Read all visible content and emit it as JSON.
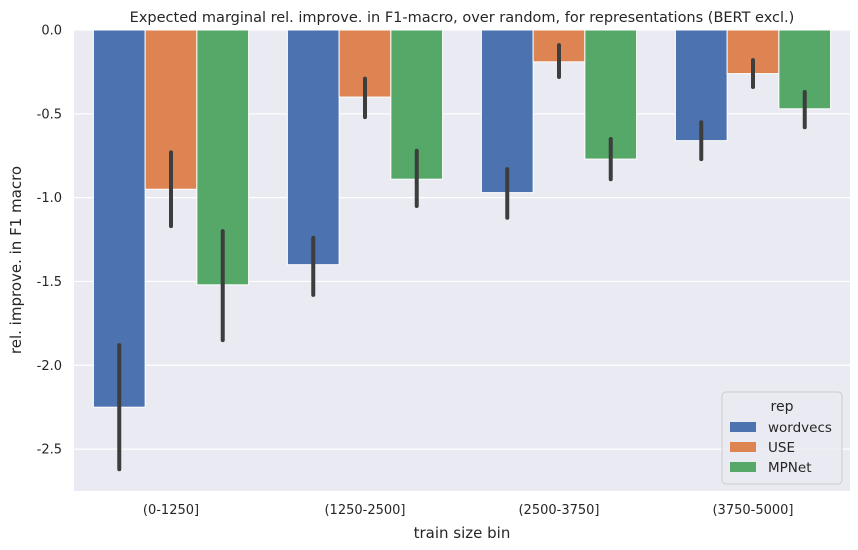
{
  "chart_data": {
    "type": "bar",
    "title": "Expected marginal rel. improve. in F1-macro, over random, for representations (BERT excl.)",
    "xlabel": "train size bin",
    "ylabel": "rel. improve. in F1 macro",
    "categories": [
      "(0-1250]",
      "(1250-2500]",
      "(2500-3750]",
      "(3750-5000]"
    ],
    "ylim": [
      -2.75,
      0.0
    ],
    "yticks": [
      0.0,
      -0.5,
      -1.0,
      -1.5,
      -2.0,
      -2.5
    ],
    "ytick_labels": [
      "0.0",
      "-0.5",
      "-1.0",
      "-1.5",
      "-2.0",
      "-2.5"
    ],
    "grid": true,
    "legend": {
      "title": "rep",
      "placement": "bottom-right"
    },
    "series": [
      {
        "name": "wordvecs",
        "color": "#4c72b0",
        "values": [
          -2.25,
          -1.4,
          -0.97,
          -0.66
        ],
        "ci_low": [
          -2.62,
          -1.58,
          -1.12,
          -0.77
        ],
        "ci_high": [
          -1.88,
          -1.24,
          -0.83,
          -0.55
        ]
      },
      {
        "name": "USE",
        "color": "#dd8452",
        "values": [
          -0.95,
          -0.4,
          -0.19,
          -0.26
        ],
        "ci_low": [
          -1.17,
          -0.52,
          -0.28,
          -0.34
        ],
        "ci_high": [
          -0.73,
          -0.29,
          -0.09,
          -0.18
        ]
      },
      {
        "name": "MPNet",
        "color": "#55a868",
        "values": [
          -1.52,
          -0.89,
          -0.77,
          -0.47
        ],
        "ci_low": [
          -1.85,
          -1.05,
          -0.89,
          -0.58
        ],
        "ci_high": [
          -1.2,
          -0.72,
          -0.65,
          -0.37
        ]
      }
    ]
  }
}
